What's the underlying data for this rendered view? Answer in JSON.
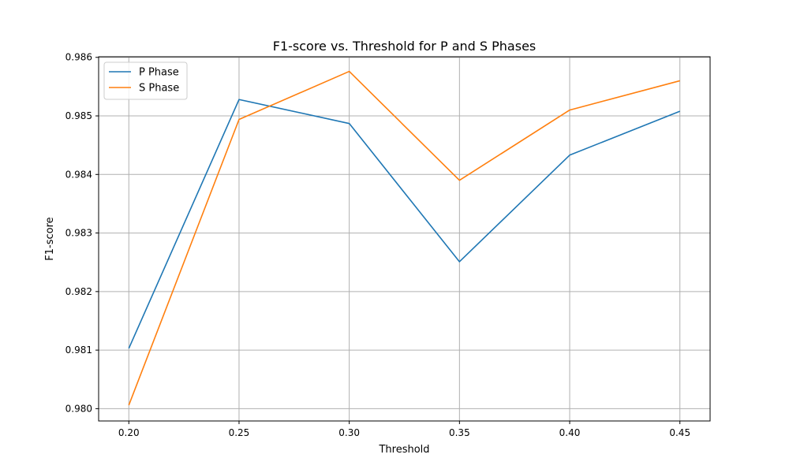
{
  "chart_data": {
    "type": "line",
    "title": "F1-score vs. Threshold for P and S Phases",
    "xlabel": "Threshold",
    "ylabel": "F1-score",
    "x": [
      0.2,
      0.25,
      0.3,
      0.35,
      0.4,
      0.45
    ],
    "x_tick_labels": [
      "0.20",
      "0.25",
      "0.30",
      "0.35",
      "0.40",
      "0.45"
    ],
    "y_ticks": [
      0.98,
      0.981,
      0.982,
      0.983,
      0.984,
      0.985,
      0.986
    ],
    "y_tick_labels": [
      "0.980",
      "0.981",
      "0.982",
      "0.983",
      "0.984",
      "0.985",
      "0.986"
    ],
    "xlim": [
      0.1863,
      0.4637
    ],
    "ylim": [
      0.97979,
      0.98601
    ],
    "grid": true,
    "legend_position": "top-left",
    "series": [
      {
        "name": "P Phase",
        "color": "#1f77b4",
        "values": [
          0.98103,
          0.98528,
          0.98487,
          0.98251,
          0.98433,
          0.98508
        ]
      },
      {
        "name": "S Phase",
        "color": "#ff7f0e",
        "values": [
          0.98006,
          0.98494,
          0.98576,
          0.9839,
          0.9851,
          0.9856
        ]
      }
    ]
  }
}
